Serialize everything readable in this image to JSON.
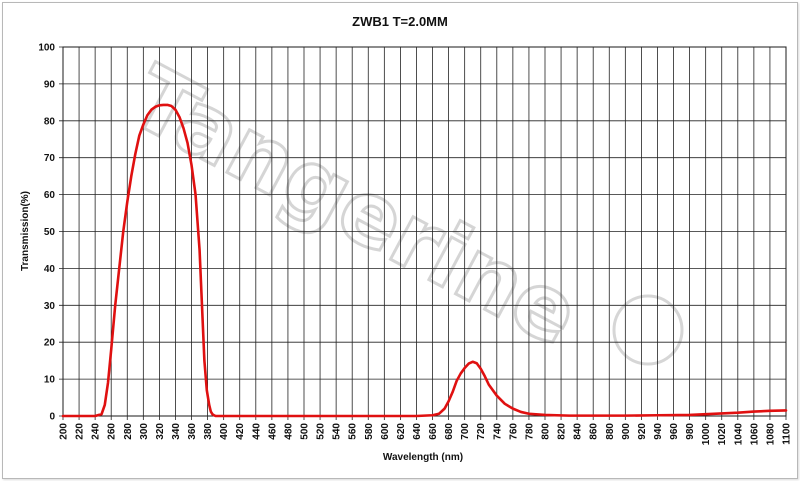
{
  "chart_data": {
    "type": "line",
    "title": "ZWB1 T=2.0MM",
    "xlabel": "Wavelength (nm)",
    "ylabel": "Transmission(%)",
    "xlim": [
      200,
      1100
    ],
    "ylim": [
      0,
      100
    ],
    "x_ticks": [
      200,
      220,
      240,
      260,
      280,
      300,
      320,
      340,
      360,
      380,
      400,
      420,
      440,
      460,
      480,
      500,
      520,
      540,
      560,
      580,
      600,
      620,
      640,
      660,
      680,
      700,
      720,
      740,
      760,
      780,
      800,
      820,
      840,
      860,
      880,
      900,
      920,
      940,
      960,
      980,
      1000,
      1020,
      1040,
      1060,
      1080,
      1100
    ],
    "y_ticks": [
      0,
      10,
      20,
      30,
      40,
      50,
      60,
      70,
      80,
      90,
      100
    ],
    "grid": true,
    "series_color": "#e01010",
    "series": [
      {
        "x": [
          200,
          240,
          248,
          252,
          256,
          260,
          265,
          270,
          275,
          280,
          285,
          290,
          295,
          300,
          305,
          310,
          315,
          320,
          325,
          330,
          335,
          340,
          345,
          350,
          355,
          360,
          365,
          370,
          373,
          376,
          379,
          382,
          384,
          386,
          388,
          390,
          395,
          400,
          450,
          500,
          550,
          600,
          640,
          660,
          668,
          675,
          680,
          685,
          690,
          695,
          700,
          705,
          710,
          715,
          720,
          725,
          730,
          740,
          750,
          760,
          770,
          780,
          800,
          830,
          860,
          900,
          940,
          980,
          1000,
          1020,
          1040,
          1060,
          1080,
          1100
        ],
        "y": [
          0,
          0,
          0.5,
          3,
          9,
          18,
          30,
          40,
          50,
          58,
          65,
          71,
          76,
          79,
          81.5,
          83,
          83.8,
          84.2,
          84.3,
          84.3,
          84,
          83,
          81,
          78,
          74,
          68,
          60,
          45,
          30,
          15,
          7,
          3,
          1.2,
          0.5,
          0.2,
          0,
          0,
          0,
          0,
          0,
          0,
          0,
          0,
          0.2,
          0.6,
          2,
          4,
          6.5,
          9.5,
          11.5,
          13,
          14.2,
          14.7,
          14.3,
          12.8,
          10.8,
          8.5,
          5.5,
          3.3,
          2,
          1.1,
          0.6,
          0.3,
          0.1,
          0.1,
          0.1,
          0.2,
          0.3,
          0.5,
          0.7,
          0.9,
          1.2,
          1.4,
          1.5
        ]
      }
    ]
  },
  "watermark": "Tangerine"
}
